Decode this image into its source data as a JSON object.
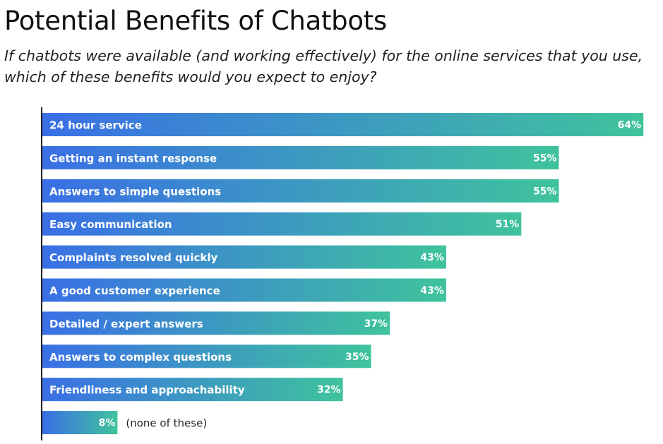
{
  "title": "Potential Benefits of Chatbots",
  "subtitle": "If chatbots were available (and working effectively) for the online services that you use, which of these benefits would you expect to enjoy?",
  "colors": {
    "gradient_start": "#3a6fe6",
    "gradient_end": "#3fc39c",
    "axis": "#222222"
  },
  "chart_data": {
    "type": "bar",
    "orientation": "horizontal",
    "value_unit": "%",
    "categories": [
      "24 hour service",
      "Getting an instant response",
      "Answers to simple questions",
      "Easy communication",
      "Complaints resolved quickly",
      "A good customer experience",
      "Detailed / expert answers",
      "Answers to complex questions",
      "Friendliness and approachability",
      "(none of these)"
    ],
    "values": [
      64,
      55,
      55,
      51,
      43,
      43,
      37,
      35,
      32,
      8
    ],
    "value_labels": [
      "64%",
      "55%",
      "55%",
      "51%",
      "43%",
      "43%",
      "37%",
      "35%",
      "32%",
      "8%"
    ],
    "grid": false,
    "legend": "none"
  }
}
